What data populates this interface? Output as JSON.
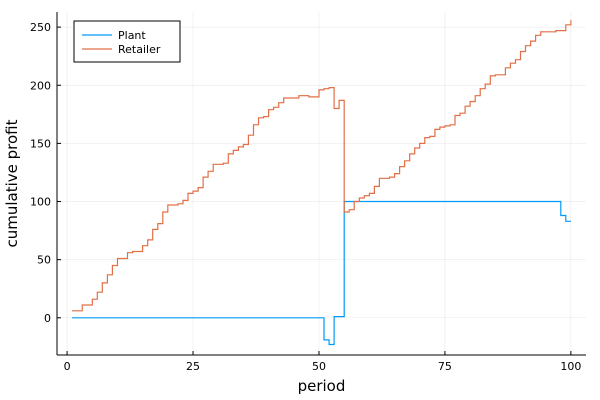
{
  "chart_data": {
    "type": "line",
    "step": true,
    "title": "",
    "xlabel": "period",
    "ylabel": "cumulative profit",
    "xlim": [
      -2,
      103
    ],
    "ylim": [
      -32,
      263
    ],
    "xticks": [
      0,
      25,
      50,
      75,
      100
    ],
    "yticks": [
      0,
      50,
      100,
      150,
      200,
      250
    ],
    "xtick_labels": [
      "0",
      "25",
      "50",
      "75",
      "100"
    ],
    "ytick_labels": [
      "0",
      "50",
      "100",
      "150",
      "200",
      "250"
    ],
    "grid": true,
    "legend_position": "top-left",
    "series": [
      {
        "name": "Plant",
        "color": "#009AFA",
        "points": [
          [
            1,
            0
          ],
          [
            51,
            -19
          ],
          [
            52,
            -23
          ],
          [
            53,
            1
          ],
          [
            55,
            100
          ],
          [
            57,
            100
          ],
          [
            98,
            88
          ],
          [
            99,
            83
          ],
          [
            100,
            83
          ]
        ]
      },
      {
        "name": "Retailer",
        "color": "#E26F46",
        "points": [
          [
            1,
            6
          ],
          [
            2,
            6
          ],
          [
            3,
            11
          ],
          [
            4,
            11
          ],
          [
            5,
            16
          ],
          [
            6,
            22
          ],
          [
            7,
            30
          ],
          [
            8,
            37
          ],
          [
            9,
            45
          ],
          [
            10,
            51
          ],
          [
            11,
            51
          ],
          [
            12,
            56
          ],
          [
            13,
            57
          ],
          [
            14,
            57
          ],
          [
            15,
            62
          ],
          [
            16,
            67
          ],
          [
            17,
            76
          ],
          [
            18,
            81
          ],
          [
            19,
            91
          ],
          [
            20,
            97
          ],
          [
            21,
            97
          ],
          [
            22,
            98
          ],
          [
            23,
            101
          ],
          [
            24,
            107
          ],
          [
            25,
            109
          ],
          [
            26,
            112
          ],
          [
            27,
            121
          ],
          [
            28,
            126
          ],
          [
            29,
            132
          ],
          [
            30,
            132
          ],
          [
            31,
            133
          ],
          [
            32,
            141
          ],
          [
            33,
            144
          ],
          [
            34,
            147
          ],
          [
            35,
            149
          ],
          [
            36,
            157
          ],
          [
            37,
            166
          ],
          [
            38,
            172
          ],
          [
            39,
            173
          ],
          [
            40,
            179
          ],
          [
            41,
            181
          ],
          [
            42,
            185
          ],
          [
            43,
            189
          ],
          [
            44,
            189
          ],
          [
            45,
            189
          ],
          [
            46,
            191
          ],
          [
            47,
            191
          ],
          [
            48,
            190
          ],
          [
            49,
            190
          ],
          [
            50,
            196
          ],
          [
            51,
            197
          ],
          [
            52,
            198
          ],
          [
            53,
            180
          ],
          [
            54,
            187
          ],
          [
            55,
            91
          ],
          [
            56,
            93
          ],
          [
            57,
            100
          ],
          [
            58,
            103
          ],
          [
            59,
            105
          ],
          [
            60,
            107
          ],
          [
            61,
            113
          ],
          [
            62,
            120
          ],
          [
            63,
            120
          ],
          [
            64,
            121
          ],
          [
            65,
            124
          ],
          [
            66,
            130
          ],
          [
            67,
            135
          ],
          [
            68,
            141
          ],
          [
            69,
            146
          ],
          [
            70,
            150
          ],
          [
            71,
            155
          ],
          [
            72,
            156
          ],
          [
            73,
            162
          ],
          [
            74,
            164
          ],
          [
            75,
            165
          ],
          [
            76,
            166
          ],
          [
            77,
            174
          ],
          [
            78,
            176
          ],
          [
            79,
            182
          ],
          [
            80,
            186
          ],
          [
            81,
            191
          ],
          [
            82,
            197
          ],
          [
            83,
            201
          ],
          [
            84,
            208
          ],
          [
            85,
            209
          ],
          [
            86,
            209
          ],
          [
            87,
            215
          ],
          [
            88,
            219
          ],
          [
            89,
            222
          ],
          [
            90,
            229
          ],
          [
            91,
            234
          ],
          [
            92,
            238
          ],
          [
            93,
            243
          ],
          [
            94,
            246
          ],
          [
            95,
            246
          ],
          [
            96,
            246
          ],
          [
            97,
            247
          ],
          [
            98,
            247
          ],
          [
            99,
            252
          ],
          [
            100,
            256
          ]
        ]
      }
    ]
  }
}
